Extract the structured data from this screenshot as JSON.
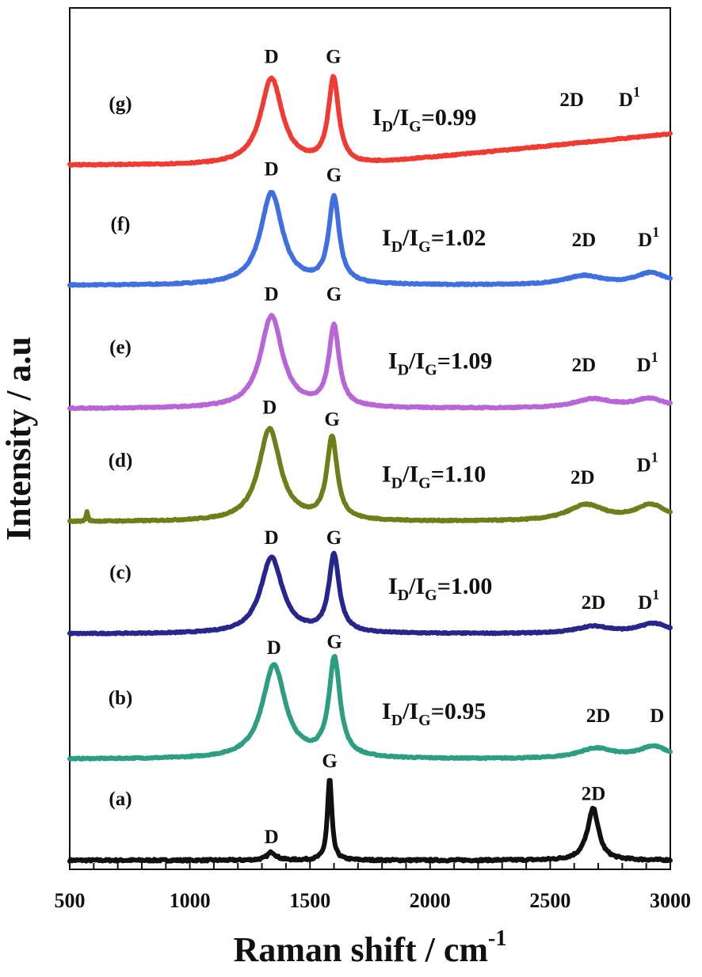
{
  "chart_data": {
    "type": "line",
    "xlabel": "Raman shift / cm",
    "xlabel_sup": "-1",
    "ylabel": "Intensity / a.u",
    "xlim": [
      500,
      3000
    ],
    "x_ticks": [
      "500",
      "1000",
      "1500",
      "2000",
      "2500",
      "3000"
    ],
    "x_tick_values": [
      500,
      1000,
      1500,
      2000,
      2500,
      3000
    ],
    "y_ticks": [],
    "grid": false,
    "legend": "none",
    "ratio_prefix": {
      "i": "I",
      "d": "D",
      "slash": "/",
      "g": "G",
      "eq": "="
    },
    "series": [
      {
        "panel": "(a)",
        "color": "#111111",
        "base": 0.04,
        "ratio": "",
        "noise": 0.01,
        "peaks": [
          {
            "x": 1340,
            "amp": 0.08,
            "w": 22
          },
          {
            "x": 1582,
            "amp": 0.82,
            "w": 11
          },
          {
            "x": 2680,
            "amp": 0.47,
            "w": 26
          },
          {
            "x": 2660,
            "amp": 0.06,
            "w": 40
          }
        ],
        "slope": 0.0,
        "labels": [
          {
            "text": "D",
            "sup": "",
            "x": 1340,
            "y": 0.21
          },
          {
            "text": "G",
            "sup": "",
            "x": 1582,
            "y": 0.97
          },
          {
            "text": "2D",
            "sup": "",
            "x": 2680,
            "y": 0.64
          }
        ]
      },
      {
        "panel": "(b)",
        "color": "#2e9e82",
        "base": 1.05,
        "ratio": "0.95",
        "noise": 0.006,
        "peaks": [
          {
            "x": 1350,
            "amp": 0.93,
            "w": 58
          },
          {
            "x": 1602,
            "amp": 0.98,
            "w": 28
          },
          {
            "x": 2690,
            "amp": 0.1,
            "w": 90
          },
          {
            "x": 2930,
            "amp": 0.12,
            "w": 75
          }
        ],
        "slope": 0.0,
        "labels": [
          {
            "text": "D",
            "sup": "",
            "x": 1350,
            "y": 2.1
          },
          {
            "text": "G",
            "sup": "",
            "x": 1602,
            "y": 2.16
          },
          {
            "text": "2D",
            "sup": "",
            "x": 2700,
            "y": 1.42
          },
          {
            "text": "D",
            "sup": "",
            "x": 2945,
            "y": 1.42
          }
        ]
      },
      {
        "panel": "(c)",
        "color": "#26268c",
        "base": 2.3,
        "ratio": "1.00",
        "noise": 0.006,
        "peaks": [
          {
            "x": 1340,
            "amp": 0.76,
            "w": 55
          },
          {
            "x": 1600,
            "amp": 0.77,
            "w": 26
          },
          {
            "x": 2680,
            "amp": 0.07,
            "w": 90
          },
          {
            "x": 2930,
            "amp": 0.1,
            "w": 75
          }
        ],
        "slope": 0.0,
        "labels": [
          {
            "text": "D",
            "sup": "",
            "x": 1340,
            "y": 3.2
          },
          {
            "text": "G",
            "sup": "",
            "x": 1600,
            "y": 3.2
          },
          {
            "text": "2D",
            "sup": "",
            "x": 2680,
            "y": 2.55
          },
          {
            "text": "D",
            "sup": "1",
            "x": 2910,
            "y": 2.55
          }
        ]
      },
      {
        "panel": "(d)",
        "color": "#6e7e1a",
        "base": 3.42,
        "ratio": "1.10",
        "noise": 0.006,
        "peaks": [
          {
            "x": 1332,
            "amp": 0.92,
            "w": 55
          },
          {
            "x": 1592,
            "amp": 0.82,
            "w": 26
          },
          {
            "x": 2650,
            "amp": 0.16,
            "w": 95
          },
          {
            "x": 2920,
            "amp": 0.16,
            "w": 80
          },
          {
            "x": 572,
            "amp": 0.1,
            "w": 4
          }
        ],
        "slope": 0.0,
        "labels": [
          {
            "text": "D",
            "sup": "",
            "x": 1332,
            "y": 4.5
          },
          {
            "text": "G",
            "sup": "",
            "x": 1592,
            "y": 4.38
          },
          {
            "text": "2D",
            "sup": "",
            "x": 2635,
            "y": 3.8
          },
          {
            "text": "D",
            "sup": "1",
            "x": 2905,
            "y": 3.92
          }
        ]
      },
      {
        "panel": "(e)",
        "color": "#b865d8",
        "base": 4.55,
        "ratio": "1.09",
        "noise": 0.006,
        "peaks": [
          {
            "x": 1340,
            "amp": 0.92,
            "w": 55
          },
          {
            "x": 1600,
            "amp": 0.8,
            "w": 26
          },
          {
            "x": 2680,
            "amp": 0.09,
            "w": 95
          },
          {
            "x": 2915,
            "amp": 0.09,
            "w": 80
          }
        ],
        "slope": 0.0,
        "labels": [
          {
            "text": "D",
            "sup": "",
            "x": 1340,
            "y": 5.63
          },
          {
            "text": "G",
            "sup": "",
            "x": 1600,
            "y": 5.63
          },
          {
            "text": "2D",
            "sup": "",
            "x": 2640,
            "y": 4.92
          },
          {
            "text": "D",
            "sup": "1",
            "x": 2905,
            "y": 4.92
          }
        ]
      },
      {
        "panel": "(f)",
        "color": "#3f6fe0",
        "base": 5.78,
        "ratio": "1.02",
        "noise": 0.006,
        "peaks": [
          {
            "x": 1340,
            "amp": 0.92,
            "w": 55
          },
          {
            "x": 1600,
            "amp": 0.86,
            "w": 26
          },
          {
            "x": 2640,
            "amp": 0.09,
            "w": 95
          },
          {
            "x": 2920,
            "amp": 0.12,
            "w": 80
          }
        ],
        "slope": 0.0,
        "labels": [
          {
            "text": "D",
            "sup": "",
            "x": 1340,
            "y": 6.88
          },
          {
            "text": "G",
            "sup": "",
            "x": 1600,
            "y": 6.82
          },
          {
            "text": "2D",
            "sup": "",
            "x": 2640,
            "y": 6.17
          },
          {
            "text": "D",
            "sup": "1",
            "x": 2910,
            "y": 6.17
          }
        ]
      },
      {
        "panel": "(g)",
        "color": "#f03a32",
        "base": 6.98,
        "ratio": "0.99",
        "noise": 0.006,
        "peaks": [
          {
            "x": 1340,
            "amp": 0.86,
            "w": 55
          },
          {
            "x": 1598,
            "amp": 0.85,
            "w": 26
          }
        ],
        "slope": 0.00024,
        "labels": [
          {
            "text": "D",
            "sup": "",
            "x": 1340,
            "y": 8.0
          },
          {
            "text": "G",
            "sup": "",
            "x": 1598,
            "y": 8.0
          },
          {
            "text": "2D",
            "sup": "",
            "x": 2590,
            "y": 7.57
          },
          {
            "text": "D",
            "sup": "1",
            "x": 2830,
            "y": 7.57
          }
        ]
      }
    ]
  }
}
